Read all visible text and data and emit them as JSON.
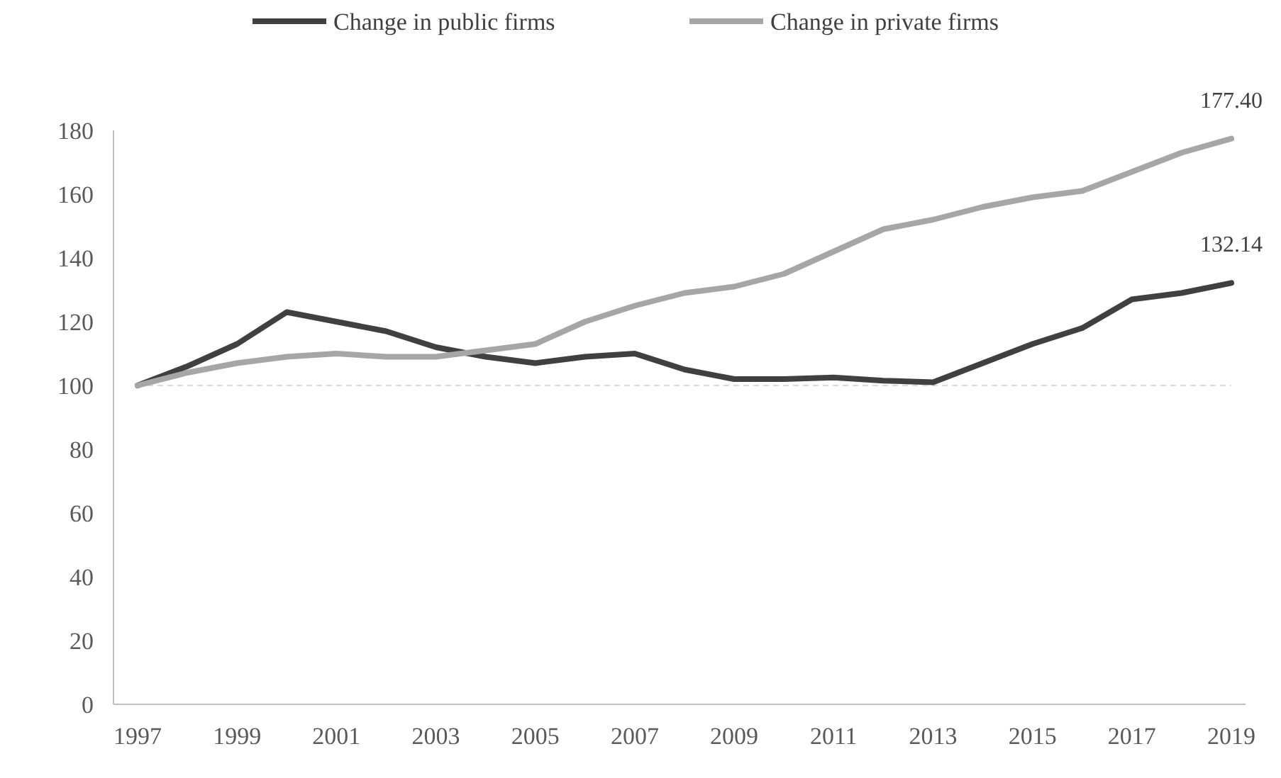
{
  "chart_data": {
    "type": "line",
    "x": [
      1997,
      1998,
      1999,
      2000,
      2001,
      2002,
      2003,
      2004,
      2005,
      2006,
      2007,
      2008,
      2009,
      2010,
      2011,
      2012,
      2013,
      2014,
      2015,
      2016,
      2017,
      2018,
      2019
    ],
    "series": [
      {
        "name": "Change in public firms",
        "color": "#404040",
        "values": [
          100,
          106,
          113,
          123,
          120,
          117,
          112,
          109,
          107,
          109,
          110,
          105,
          102,
          102,
          102.5,
          101.5,
          101,
          107,
          113,
          118,
          127,
          129,
          132.14
        ],
        "value_labels": [
          null,
          null,
          null,
          null,
          null,
          null,
          null,
          null,
          null,
          null,
          null,
          null,
          null,
          null,
          null,
          null,
          null,
          null,
          null,
          null,
          null,
          null,
          "132.14"
        ]
      },
      {
        "name": "Change in private firms",
        "color": "#a6a6a6",
        "values": [
          100,
          104,
          107,
          109,
          110,
          109,
          109,
          111,
          113,
          120,
          125,
          129,
          131,
          135,
          142,
          149,
          152,
          156,
          159,
          161,
          167,
          173,
          177.4
        ],
        "value_labels": [
          null,
          null,
          null,
          null,
          null,
          null,
          null,
          null,
          null,
          null,
          null,
          null,
          null,
          null,
          null,
          null,
          null,
          null,
          null,
          null,
          null,
          null,
          "177.40"
        ]
      }
    ],
    "xlim": [
      1997,
      2019
    ],
    "xticks": [
      1997,
      1999,
      2001,
      2003,
      2005,
      2007,
      2009,
      2011,
      2013,
      2015,
      2017,
      2019
    ],
    "ylim": [
      0,
      180
    ],
    "yticks": [
      0,
      20,
      40,
      60,
      80,
      100,
      120,
      140,
      160,
      180
    ],
    "ref_lines": [
      {
        "axis": "y",
        "value": 100,
        "color": "#d9d9d9",
        "line_style": "dashed"
      }
    ],
    "grid": false,
    "legend": "top"
  }
}
